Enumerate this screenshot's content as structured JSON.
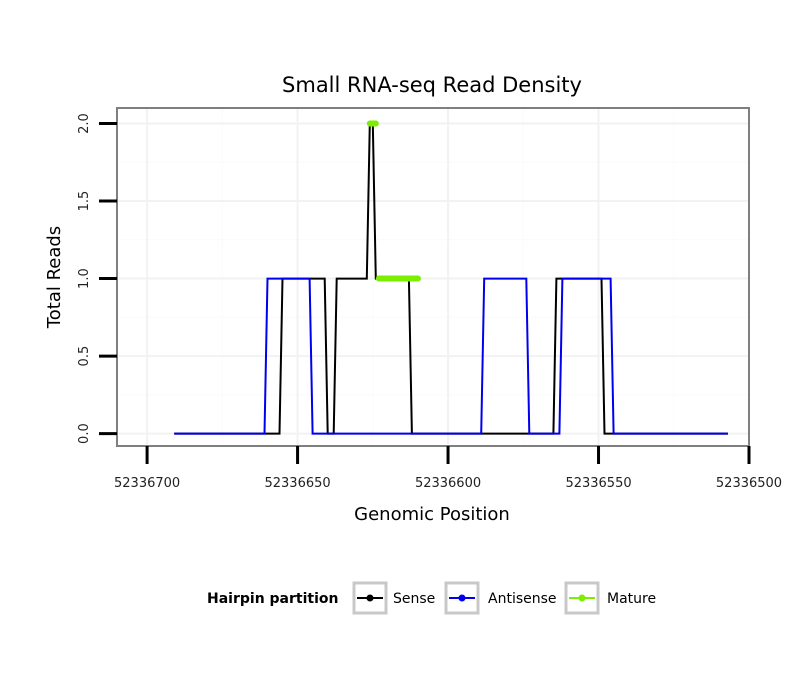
{
  "chart_data": {
    "type": "line",
    "title": "Small RNA-seq Read Density",
    "xlabel": "Genomic Position",
    "ylabel": "Total Reads",
    "xlim": [
      52336710,
      52336500
    ],
    "ylim": [
      -0.08,
      2.1
    ],
    "x_reversed": true,
    "x_ticks": [
      52336700,
      52336650,
      52336600,
      52336550,
      52336500
    ],
    "x_tick_labels": [
      "52336700",
      "52336650",
      "52336600",
      "52336550",
      "52336500"
    ],
    "y_ticks": [
      0,
      0.5,
      1,
      1.5,
      2
    ],
    "y_tick_labels": [
      "0.0",
      "0.5",
      "1.0",
      "1.5",
      "2.0"
    ],
    "grid": true,
    "legend": {
      "title": "Hairpin partition",
      "position": "bottom",
      "entries": [
        "Sense",
        "Antisense",
        "Mature"
      ]
    },
    "series": [
      {
        "name": "Sense",
        "color": "#000000",
        "x": [
          52336691,
          52336656,
          52336655,
          52336641,
          52336640,
          52336638,
          52336637,
          52336627,
          52336626,
          52336625,
          52336624,
          52336613,
          52336612,
          52336565,
          52336564,
          52336549,
          52336548,
          52336507
        ],
        "y": [
          0,
          0,
          1,
          1,
          0,
          0,
          1,
          1,
          2,
          2,
          1,
          1,
          0,
          0,
          1,
          1,
          0,
          0
        ]
      },
      {
        "name": "Antisense",
        "color": "#0000ee",
        "x": [
          52336691,
          52336661,
          52336660,
          52336646,
          52336645,
          52336589,
          52336588,
          52336574,
          52336573,
          52336563,
          52336562,
          52336546,
          52336545,
          52336507
        ],
        "y": [
          0,
          0,
          1,
          1,
          0,
          0,
          1,
          1,
          0,
          0,
          1,
          1,
          0,
          0
        ]
      },
      {
        "name": "Mature",
        "color": "#7cee00",
        "segments": [
          {
            "x": [
              52336626,
              52336624
            ],
            "y": [
              2,
              2
            ]
          },
          {
            "x": [
              52336623,
              52336610
            ],
            "y": [
              1,
              1
            ]
          }
        ]
      }
    ]
  }
}
